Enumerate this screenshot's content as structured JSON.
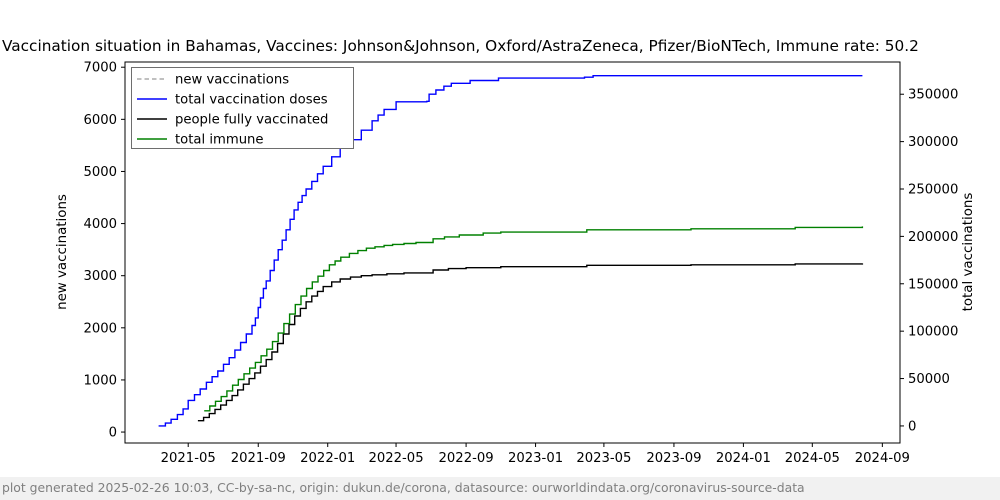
{
  "title": "Vaccination situation in Bahamas, Vaccines: Johnson&Johnson, Oxford/AstraZeneca, Pfizer/BioNTech, Immune rate: 50.2",
  "footer": "plot generated 2025-02-26 10:03, CC-by-sa-nc, origin: dukun.de/corona, datasource: ourworldindata.org/coronavirus-source-data",
  "chart_data": {
    "type": "line",
    "title": "Vaccination situation in Bahamas, Vaccines: Johnson&Johnson, Oxford/AstraZeneca, Pfizer/BioNTech, Immune rate: 50.2",
    "xlabel": "",
    "ylabel_left": "new vaccinations",
    "ylabel_right": "total vaccinations",
    "grid": false,
    "legend_position": "upper-left",
    "xlim": [
      "2021-01-10",
      "2024-10-02"
    ],
    "ylim_left": [
      -210,
      7100
    ],
    "ylim_right": [
      -18000,
      384000
    ],
    "xticks": [
      {
        "date": "2021-05-01",
        "label": "2021-05"
      },
      {
        "date": "2021-09-01",
        "label": "2021-09"
      },
      {
        "date": "2022-01-01",
        "label": "2022-01"
      },
      {
        "date": "2022-05-01",
        "label": "2022-05"
      },
      {
        "date": "2022-09-01",
        "label": "2022-09"
      },
      {
        "date": "2023-01-01",
        "label": "2023-01"
      },
      {
        "date": "2023-05-01",
        "label": "2023-05"
      },
      {
        "date": "2023-09-01",
        "label": "2023-09"
      },
      {
        "date": "2024-01-01",
        "label": "2024-01"
      },
      {
        "date": "2024-05-01",
        "label": "2024-05"
      },
      {
        "date": "2024-09-01",
        "label": "2024-09"
      }
    ],
    "yticks_left": [
      {
        "v": 0,
        "label": "0"
      },
      {
        "v": 1000,
        "label": "1000"
      },
      {
        "v": 2000,
        "label": "2000"
      },
      {
        "v": 3000,
        "label": "3000"
      },
      {
        "v": 4000,
        "label": "4000"
      },
      {
        "v": 5000,
        "label": "5000"
      },
      {
        "v": 6000,
        "label": "6000"
      },
      {
        "v": 7000,
        "label": "7000"
      }
    ],
    "yticks_right": [
      {
        "v": 0,
        "label": "0"
      },
      {
        "v": 50000,
        "label": "50000"
      },
      {
        "v": 100000,
        "label": "100000"
      },
      {
        "v": 150000,
        "label": "150000"
      },
      {
        "v": 200000,
        "label": "200000"
      },
      {
        "v": 250000,
        "label": "250000"
      },
      {
        "v": 300000,
        "label": "300000"
      },
      {
        "v": 350000,
        "label": "350000"
      }
    ],
    "legend": [
      {
        "label": "new vaccinations",
        "color": "#ababab",
        "dash": true
      },
      {
        "label": "total vaccination doses",
        "color": "#0000ff",
        "dash": false
      },
      {
        "label": "people fully vaccinated",
        "color": "#000000",
        "dash": false
      },
      {
        "label": "total immune",
        "color": "#008000",
        "dash": false
      }
    ],
    "series": [
      {
        "name": "new vaccinations",
        "axis": "left",
        "color": "#ababab",
        "dash": true,
        "visible_in_plot": false,
        "points": []
      },
      {
        "name": "total vaccination doses",
        "axis": "right",
        "color": "#0000ff",
        "dash": false,
        "points": [
          [
            "2021-03-10",
            0
          ],
          [
            "2021-03-22",
            3000
          ],
          [
            "2021-04-01",
            7000
          ],
          [
            "2021-04-12",
            12000
          ],
          [
            "2021-04-22",
            18000
          ],
          [
            "2021-05-01",
            27000
          ],
          [
            "2021-05-12",
            33000
          ],
          [
            "2021-05-22",
            39000
          ],
          [
            "2021-06-02",
            46000
          ],
          [
            "2021-06-12",
            52000
          ],
          [
            "2021-06-22",
            58000
          ],
          [
            "2021-07-02",
            65000
          ],
          [
            "2021-07-12",
            72000
          ],
          [
            "2021-07-22",
            80000
          ],
          [
            "2021-08-01",
            88000
          ],
          [
            "2021-08-11",
            97000
          ],
          [
            "2021-08-21",
            106000
          ],
          [
            "2021-08-27",
            114000
          ],
          [
            "2021-09-01",
            125000
          ],
          [
            "2021-09-05",
            135000
          ],
          [
            "2021-09-10",
            145000
          ],
          [
            "2021-09-15",
            153000
          ],
          [
            "2021-09-22",
            164000
          ],
          [
            "2021-09-29",
            175000
          ],
          [
            "2021-10-06",
            186000
          ],
          [
            "2021-10-13",
            196000
          ],
          [
            "2021-10-20",
            207000
          ],
          [
            "2021-10-27",
            218000
          ],
          [
            "2021-11-03",
            228000
          ],
          [
            "2021-11-10",
            236000
          ],
          [
            "2021-11-17",
            243000
          ],
          [
            "2021-11-24",
            250000
          ],
          [
            "2021-12-04",
            258000
          ],
          [
            "2021-12-14",
            266000
          ],
          [
            "2021-12-24",
            274000
          ],
          [
            "2022-01-08",
            284000
          ],
          [
            "2022-01-23",
            293000
          ],
          [
            "2022-02-10",
            302000
          ],
          [
            "2022-03-01",
            312000
          ],
          [
            "2022-03-20",
            322000
          ],
          [
            "2022-04-10",
            334000
          ],
          [
            "2022-05-01",
            342000
          ],
          [
            "2022-06-24",
            342500
          ],
          [
            "2022-06-28",
            350000
          ],
          [
            "2022-07-10",
            354500
          ],
          [
            "2022-07-24",
            358500
          ],
          [
            "2022-08-06",
            361500
          ],
          [
            "2022-09-08",
            364500
          ],
          [
            "2022-10-28",
            367000
          ],
          [
            "2023-03-28",
            368000
          ],
          [
            "2023-04-12",
            369500
          ],
          [
            "2024-07-28",
            369500
          ]
        ]
      },
      {
        "name": "people fully vaccinated",
        "axis": "right",
        "color": "#000000",
        "dash": false,
        "points": [
          [
            "2021-05-18",
            5500
          ],
          [
            "2021-05-28",
            9000
          ],
          [
            "2021-06-07",
            13000
          ],
          [
            "2021-06-17",
            17500
          ],
          [
            "2021-06-27",
            22000
          ],
          [
            "2021-07-07",
            27000
          ],
          [
            "2021-07-17",
            32000
          ],
          [
            "2021-07-27",
            38000
          ],
          [
            "2021-08-06",
            44000
          ],
          [
            "2021-08-16",
            50000
          ],
          [
            "2021-08-26",
            56000
          ],
          [
            "2021-09-05",
            63000
          ],
          [
            "2021-09-15",
            70000
          ],
          [
            "2021-09-25",
            78000
          ],
          [
            "2021-10-05",
            87000
          ],
          [
            "2021-10-15",
            97000
          ],
          [
            "2021-10-25",
            107000
          ],
          [
            "2021-11-04",
            116000
          ],
          [
            "2021-11-14",
            124000
          ],
          [
            "2021-11-24",
            131000
          ],
          [
            "2021-12-04",
            137000
          ],
          [
            "2021-12-14",
            142000
          ],
          [
            "2021-12-24",
            147000
          ],
          [
            "2022-01-08",
            152000
          ],
          [
            "2022-01-23",
            155000
          ],
          [
            "2022-02-10",
            157000
          ],
          [
            "2022-03-01",
            158500
          ],
          [
            "2022-03-20",
            159500
          ],
          [
            "2022-04-15",
            160500
          ],
          [
            "2022-05-15",
            161500
          ],
          [
            "2022-07-05",
            164500
          ],
          [
            "2022-08-01",
            166000
          ],
          [
            "2022-09-01",
            167000
          ],
          [
            "2022-11-01",
            168000
          ],
          [
            "2023-04-01",
            169500
          ],
          [
            "2023-10-01",
            170000
          ],
          [
            "2024-04-01",
            171000
          ],
          [
            "2024-07-28",
            171500
          ]
        ]
      },
      {
        "name": "total immune",
        "axis": "right",
        "color": "#008000",
        "dash": false,
        "points": [
          [
            "2021-05-29",
            16000
          ],
          [
            "2021-06-08",
            21000
          ],
          [
            "2021-06-18",
            26000
          ],
          [
            "2021-06-28",
            31000
          ],
          [
            "2021-07-08",
            37000
          ],
          [
            "2021-07-18",
            43000
          ],
          [
            "2021-07-28",
            49000
          ],
          [
            "2021-08-07",
            55000
          ],
          [
            "2021-08-17",
            61000
          ],
          [
            "2021-08-27",
            67000
          ],
          [
            "2021-09-06",
            74000
          ],
          [
            "2021-09-16",
            81000
          ],
          [
            "2021-09-26",
            89000
          ],
          [
            "2021-10-06",
            98000
          ],
          [
            "2021-10-16",
            108000
          ],
          [
            "2021-10-26",
            118000
          ],
          [
            "2021-11-05",
            128000
          ],
          [
            "2021-11-15",
            137000
          ],
          [
            "2021-11-25",
            145000
          ],
          [
            "2021-12-05",
            152000
          ],
          [
            "2021-12-15",
            158000
          ],
          [
            "2021-12-25",
            164000
          ],
          [
            "2022-01-04",
            170000
          ],
          [
            "2022-01-14",
            174000
          ],
          [
            "2022-01-24",
            178000
          ],
          [
            "2022-02-08",
            182000
          ],
          [
            "2022-02-23",
            185000
          ],
          [
            "2022-03-10",
            187500
          ],
          [
            "2022-03-25",
            189000
          ],
          [
            "2022-04-10",
            190500
          ],
          [
            "2022-04-25",
            191500
          ],
          [
            "2022-05-15",
            192500
          ],
          [
            "2022-06-05",
            193500
          ],
          [
            "2022-07-05",
            197500
          ],
          [
            "2022-07-25",
            199500
          ],
          [
            "2022-08-20",
            201500
          ],
          [
            "2022-10-01",
            203500
          ],
          [
            "2022-11-01",
            204500
          ],
          [
            "2023-04-01",
            207000
          ],
          [
            "2023-10-01",
            208000
          ],
          [
            "2024-04-01",
            209500
          ],
          [
            "2024-07-28",
            210500
          ]
        ]
      }
    ]
  }
}
